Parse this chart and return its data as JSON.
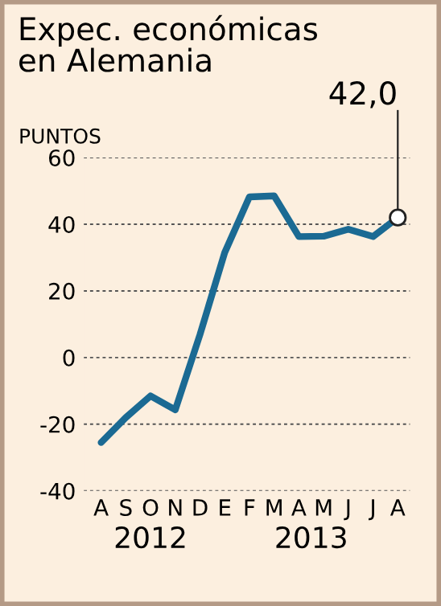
{
  "chart_data": {
    "type": "line",
    "title": "Expec. económicas\nen Alemania",
    "ylabel": "PUNTOS",
    "categories": [
      "A",
      "S",
      "O",
      "N",
      "D",
      "E",
      "F",
      "M",
      "A",
      "M",
      "J",
      "J",
      "A"
    ],
    "series": [
      {
        "color": "#1b6a93",
        "values": [
          -25.5,
          -18,
          -11.5,
          -15.7,
          6.9,
          31.5,
          48.2,
          48.5,
          36.3,
          36.4,
          38.5,
          36.3,
          42.0
        ],
        "value_labels": [
          null,
          null,
          null,
          null,
          null,
          null,
          null,
          null,
          null,
          null,
          null,
          null,
          "42,0"
        ]
      }
    ],
    "ylim": [
      -40,
      60
    ],
    "yticks": [
      -40,
      -20,
      0,
      20,
      40,
      60
    ],
    "grid": "y",
    "marker": "none",
    "line_style": "solid",
    "annotations": [
      "2012",
      "2013"
    ]
  }
}
